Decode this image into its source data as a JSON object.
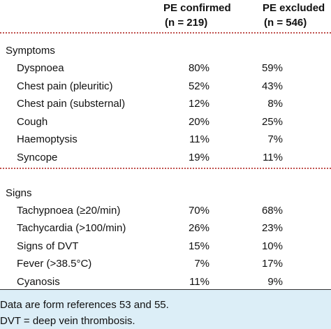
{
  "table": {
    "columns": [
      {
        "line1": "PE confirmed",
        "line2": "(n = 219)"
      },
      {
        "line1": "PE excluded",
        "line2": "(n = 546)"
      }
    ],
    "sections": [
      {
        "title": "Symptoms",
        "rows": [
          [
            "Dyspnoea",
            "80%",
            "59%"
          ],
          [
            "Chest pain (pleuritic)",
            "52%",
            "43%"
          ],
          [
            "Chest pain (substernal)",
            "12%",
            "8%"
          ],
          [
            "Cough",
            "20%",
            "25%"
          ],
          [
            "Haemoptysis",
            "11%",
            "7%"
          ],
          [
            "Syncope",
            "19%",
            "11%"
          ]
        ]
      },
      {
        "title": "Signs",
        "rows": [
          [
            "Tachypnoea (≥20/min)",
            "70%",
            "68%"
          ],
          [
            "Tachycardia (>100/min)",
            "26%",
            "23%"
          ],
          [
            "Signs of DVT",
            "15%",
            "10%"
          ],
          [
            "Fever (>38.5°C)",
            "7%",
            "17%"
          ],
          [
            "Cyanosis",
            "11%",
            "9%"
          ]
        ]
      }
    ],
    "footnotes": [
      "Data are form references 53 and 55.",
      "DVT = deep vein thrombosis."
    ]
  }
}
